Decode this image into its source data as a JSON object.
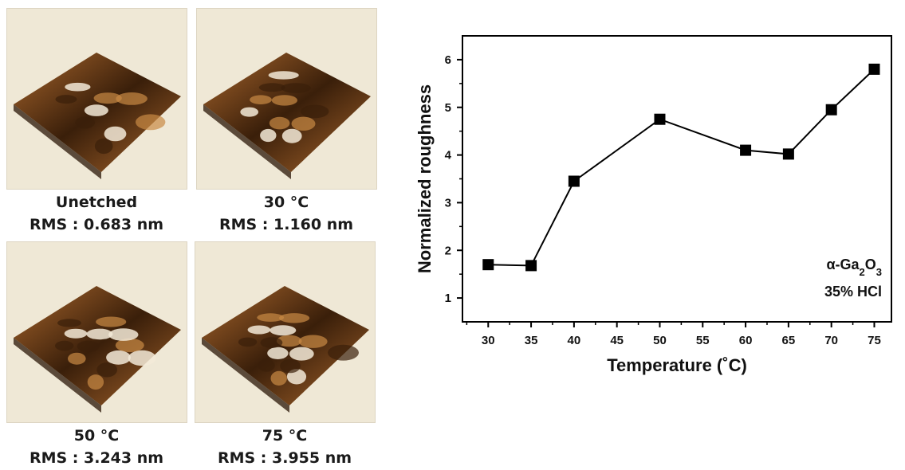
{
  "afm_panels": [
    {
      "label": "Unetched",
      "rms": "RMS : 0.683 nm"
    },
    {
      "label": "30 °C",
      "rms": "RMS : 1.160 nm"
    },
    {
      "label": "50 °C",
      "rms": "RMS : 3.243 nm"
    },
    {
      "label": "75 °C",
      "rms": "RMS : 3.955 nm"
    }
  ],
  "colors": {
    "afm_background": "#efe8d6",
    "afm_dark": "#3a1f0a",
    "afm_mid": "#a9662c",
    "afm_light": "#f3ead8",
    "marker": "#000000"
  },
  "chart_data": {
    "type": "line",
    "x": [
      30,
      35,
      40,
      50,
      60,
      65,
      70,
      75
    ],
    "series": [
      {
        "values": [
          1.7,
          1.68,
          3.45,
          4.75,
          4.1,
          4.02,
          4.95,
          5.8
        ]
      }
    ],
    "xlabel": "Temperature (˚C)",
    "ylabel": "Normalized roughness",
    "xlim": [
      27,
      77
    ],
    "ylim": [
      0.5,
      6.5
    ],
    "xticks": [
      30,
      35,
      40,
      45,
      50,
      55,
      60,
      65,
      70,
      75
    ],
    "yticks": [
      1,
      2,
      3,
      4,
      5,
      6
    ],
    "grid": false,
    "legend_placement": "bottom-right",
    "annotation_lines": [
      "α-Ga2O3",
      "35% HCl"
    ]
  }
}
